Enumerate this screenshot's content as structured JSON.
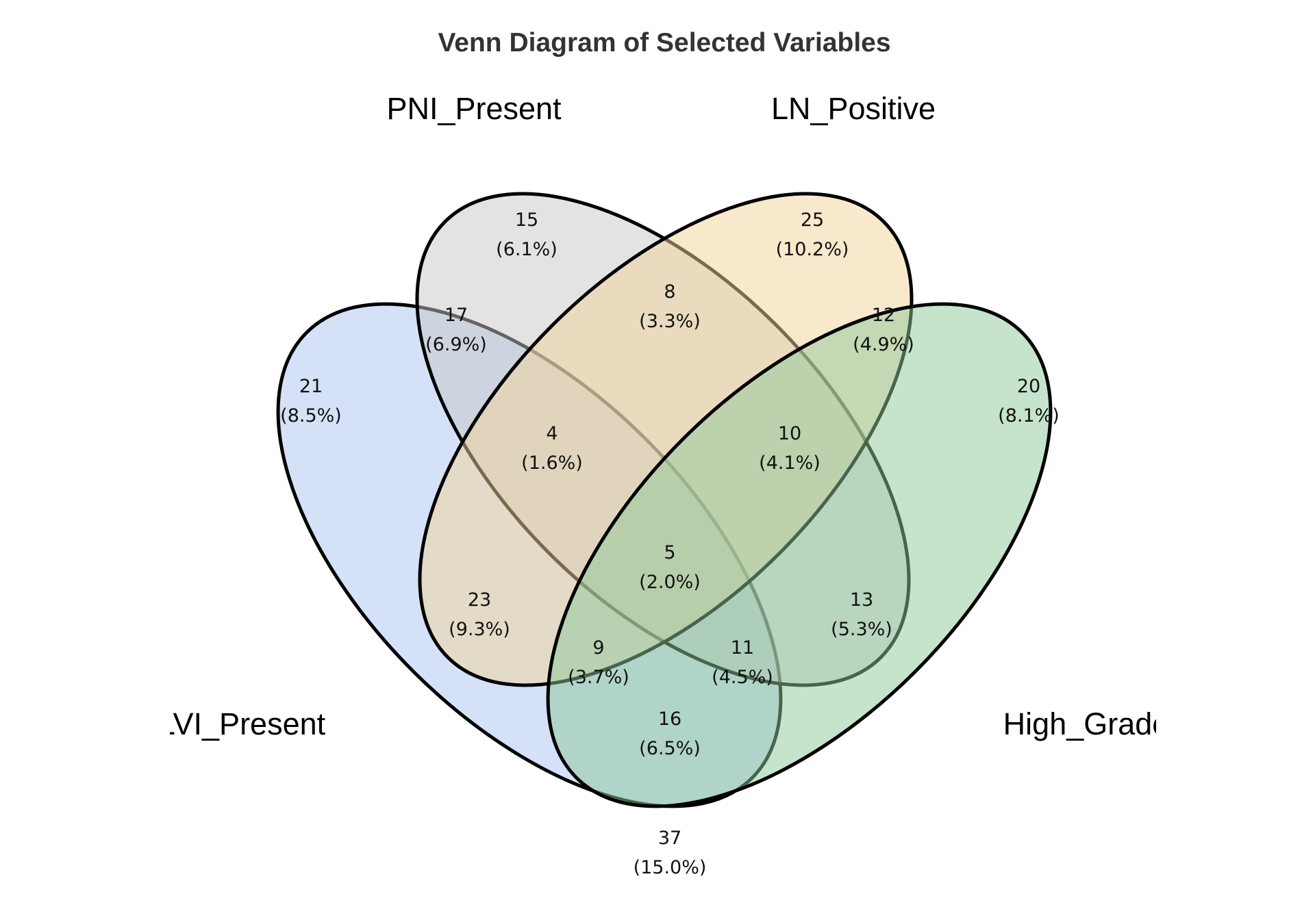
{
  "title": "Venn Diagram of Selected Variables",
  "sets": [
    {
      "key": "A",
      "label": "LVI_Present",
      "color": "#A9C4F0"
    },
    {
      "key": "B",
      "label": "PNI_Present",
      "color": "#C8C8C8"
    },
    {
      "key": "C",
      "label": "LN_Positive",
      "color": "#F2D49A"
    },
    {
      "key": "D",
      "label": "High_Grade",
      "color": "#8EC89A"
    }
  ],
  "regions": [
    {
      "id": "A",
      "count": "21",
      "pct": "(8.5%)"
    },
    {
      "id": "B",
      "count": "15",
      "pct": "(6.1%)"
    },
    {
      "id": "C",
      "count": "25",
      "pct": "(10.2%)"
    },
    {
      "id": "D",
      "count": "20",
      "pct": "(8.1%)"
    },
    {
      "id": "AB",
      "count": "17",
      "pct": "(6.9%)"
    },
    {
      "id": "BC",
      "count": "8",
      "pct": "(3.3%)"
    },
    {
      "id": "CD",
      "count": "12",
      "pct": "(4.9%)"
    },
    {
      "id": "ABC",
      "count": "4",
      "pct": "(1.6%)"
    },
    {
      "id": "BCD",
      "count": "10",
      "pct": "(4.1%)"
    },
    {
      "id": "ABCD",
      "count": "5",
      "pct": "(2.0%)"
    },
    {
      "id": "AC",
      "count": "23",
      "pct": "(9.3%)"
    },
    {
      "id": "BD",
      "count": "13",
      "pct": "(5.3%)"
    },
    {
      "id": "ACD",
      "count": "9",
      "pct": "(3.7%)"
    },
    {
      "id": "ABD",
      "count": "11",
      "pct": "(4.5%)"
    },
    {
      "id": "AD",
      "count": "16",
      "pct": "(6.5%)"
    },
    {
      "id": "none",
      "count": "37",
      "pct": "(15.0%)"
    }
  ]
}
